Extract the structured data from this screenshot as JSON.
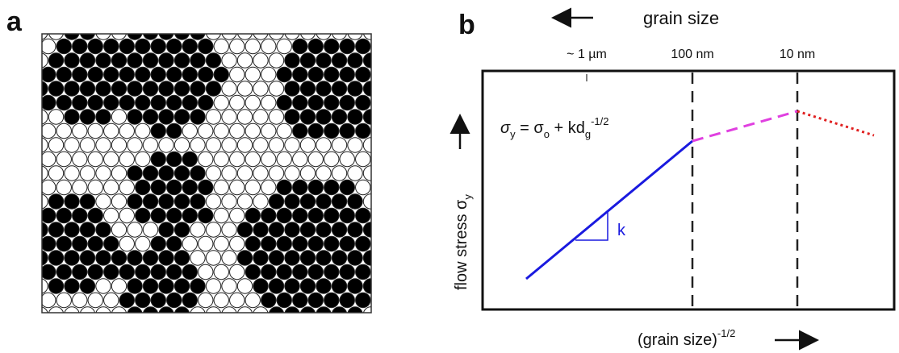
{
  "panel_a": {
    "label": "a"
  },
  "panel_b": {
    "label": "b",
    "top_axis": {
      "label": "grain size",
      "ticks": [
        "~ 1  µm",
        "100 nm",
        "10 nm"
      ]
    },
    "equation": {
      "lhs": "σ",
      "lhs_sub": "y",
      "middle": " = σ",
      "o_sub": "o",
      "plus": " + kd",
      "g_sub": "g",
      "exponent": "-1/2"
    },
    "slope_label": "k",
    "y_axis_label": {
      "text": "flow stress σ",
      "sub": "y"
    },
    "x_axis_label": {
      "text": "(grain size)",
      "sup": "-1/2"
    }
  }
}
